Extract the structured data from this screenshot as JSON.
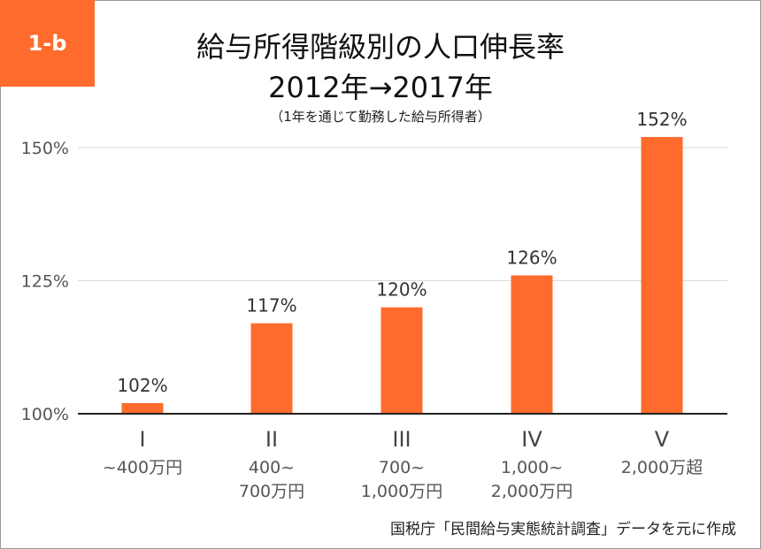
{
  "badge": "1-b",
  "title": {
    "line1": "給与所得階級別の人口伸長率",
    "line2": "2012年→2017年",
    "line3": "（1年を通じて勤務した給与所得者）"
  },
  "source": "国税庁「民間給与実態統計調査」データを元に作成",
  "colors": {
    "accent": "#ff6b2c",
    "bar": "#ff6b2c",
    "grid": "#d9d9d9",
    "axis": "#222222"
  },
  "chart_data": {
    "type": "bar",
    "categories": [
      "I",
      "II",
      "III",
      "IV",
      "V"
    ],
    "category_sublabels": [
      [
        "~400万円"
      ],
      [
        "400~",
        "700万円"
      ],
      [
        "700~",
        "1,000万円"
      ],
      [
        "1,000~",
        "2,000万円"
      ],
      [
        "2,000万超"
      ]
    ],
    "values": [
      102,
      117,
      120,
      126,
      152
    ],
    "data_labels": [
      "102%",
      "117%",
      "120%",
      "126%",
      "152%"
    ],
    "ylim": [
      100,
      155
    ],
    "yticks": [
      100,
      125,
      150
    ],
    "ytick_labels": [
      "100%",
      "125%",
      "150%"
    ],
    "grid": true,
    "legend": "none"
  }
}
